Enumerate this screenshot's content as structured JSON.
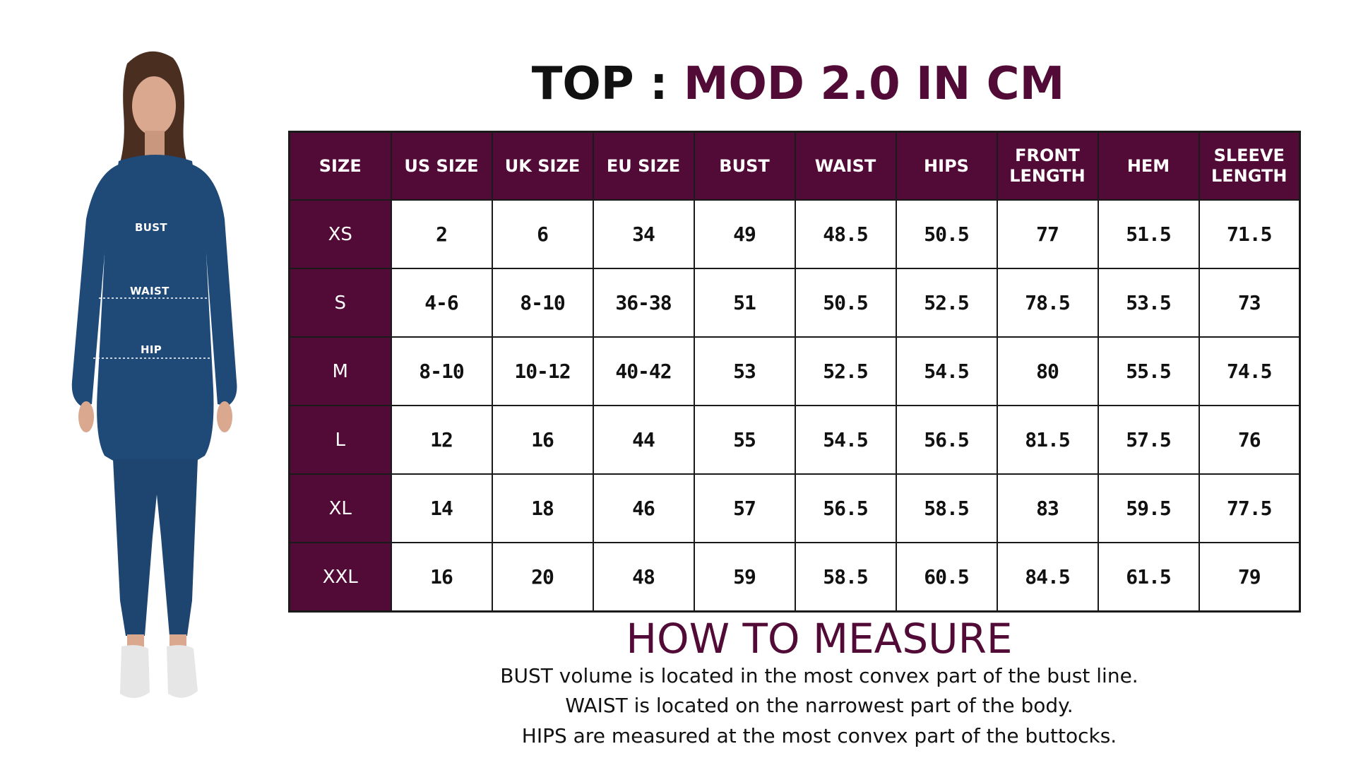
{
  "model": {
    "labels": {
      "bust": "BUST",
      "waist": "WAIST",
      "hip": "HIP"
    },
    "colors": {
      "top": "#1f4a78",
      "leggings": "#1d4570",
      "shoes": "#e6e6e6",
      "hair": "#4a2e20",
      "skin": "#d9a88e"
    }
  },
  "title": {
    "prefix": "TOP : ",
    "highlight": "MOD 2.0 IN CM"
  },
  "colors": {
    "accent": "#520b36",
    "text": "#111111",
    "border": "#1a1a1a"
  },
  "table": {
    "headers": [
      "SIZE",
      "US SIZE",
      "UK SIZE",
      "EU SIZE",
      "BUST",
      "WAIST",
      "HIPS",
      "FRONT\nLENGTH",
      "HEM",
      "SLEEVE\nLENGTH"
    ],
    "rows": [
      [
        "XS",
        "2",
        "6",
        "34",
        "49",
        "48.5",
        "50.5",
        "77",
        "51.5",
        "71.5"
      ],
      [
        "S",
        "4-6",
        "8-10",
        "36-38",
        "51",
        "50.5",
        "52.5",
        "78.5",
        "53.5",
        "73"
      ],
      [
        "M",
        "8-10",
        "10-12",
        "40-42",
        "53",
        "52.5",
        "54.5",
        "80",
        "55.5",
        "74.5"
      ],
      [
        "L",
        "12",
        "16",
        "44",
        "55",
        "54.5",
        "56.5",
        "81.5",
        "57.5",
        "76"
      ],
      [
        "XL",
        "14",
        "18",
        "46",
        "57",
        "56.5",
        "58.5",
        "83",
        "59.5",
        "77.5"
      ],
      [
        "XXL",
        "16",
        "20",
        "48",
        "59",
        "58.5",
        "60.5",
        "84.5",
        "61.5",
        "79"
      ]
    ]
  },
  "how_to_measure": {
    "title": "HOW TO MEASURE",
    "lines": [
      "BUST volume is located in the most convex part of the bust line.",
      "WAIST is located on the narrowest part of the body.",
      "HIPS are measured at the most convex part of the buttocks."
    ]
  }
}
